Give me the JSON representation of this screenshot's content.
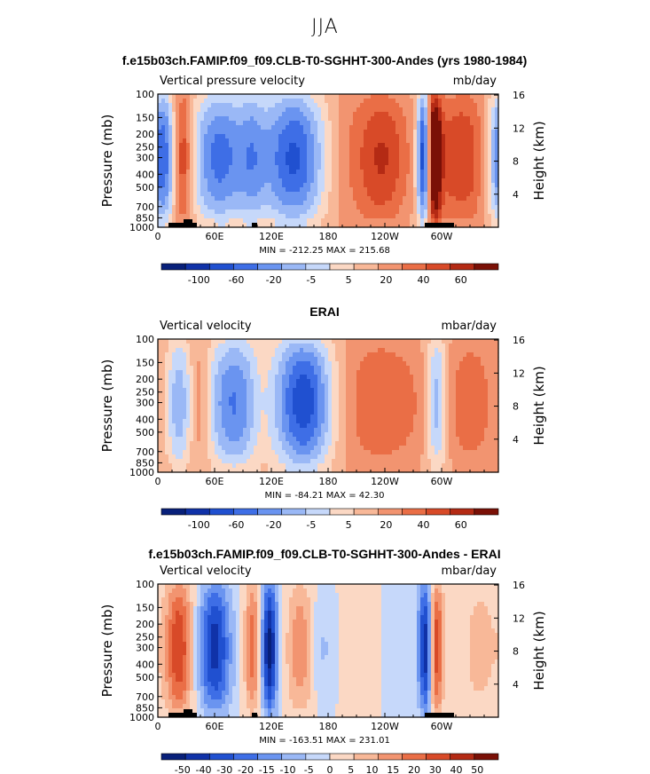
{
  "page_title": "JJA",
  "colors": {
    "palette": [
      "#08207a",
      "#1032a8",
      "#2050d0",
      "#3e6ee6",
      "#6a94f0",
      "#9ab8f6",
      "#c6d8fa",
      "#fbd8c4",
      "#f8b898",
      "#f29470",
      "#ea6e46",
      "#d84a28",
      "#b42a14",
      "#7a1006"
    ]
  },
  "chart_data": [
    {
      "type": "heatmap",
      "title": "f.e15b03ch.FAMIP.f09_f09.CLB-T0-SGHHT-300-Andes (yrs 1980-1984)",
      "left_label": "Vertical pressure velocity",
      "right_label": "mb/day",
      "ylabel": "Pressure (mb)",
      "ylabel_right": "Height (km)",
      "y_ticks": [
        "100",
        "150",
        "200",
        "250",
        "300",
        "400",
        "500",
        "700",
        "850",
        "1000"
      ],
      "y_right_ticks": [
        "16",
        "12",
        "8",
        "4"
      ],
      "x_ticks": [
        "0",
        "60E",
        "120E",
        "180",
        "120W",
        "60W"
      ],
      "stats": "MIN = -212.25   MAX = 215.68",
      "colorbar_labels": [
        "-100",
        "-60",
        "-20",
        "-5",
        "5",
        "20",
        "40",
        "60"
      ],
      "features": [
        {
          "lon": 5,
          "width": 12,
          "value": -70,
          "strength": 1
        },
        {
          "lon": 25,
          "width": 8,
          "value": 55,
          "strength": 1
        },
        {
          "lon": 65,
          "width": 22,
          "value": -60,
          "strength": 1
        },
        {
          "lon": 100,
          "width": 10,
          "value": -30,
          "strength": 0.8
        },
        {
          "lon": 145,
          "width": 25,
          "value": -70,
          "strength": 1
        },
        {
          "lon": 210,
          "width": 35,
          "value": 22,
          "strength": 0.7
        },
        {
          "lon": 240,
          "width": 18,
          "value": 35,
          "strength": 0.8
        },
        {
          "lon": 283,
          "width": 6,
          "value": -120,
          "strength": 1
        },
        {
          "lon": 290,
          "width": 6,
          "value": 110,
          "strength": 1
        },
        {
          "lon": 320,
          "width": 22,
          "value": 40,
          "strength": 0.9
        }
      ],
      "vmin": -100,
      "vmax": 60
    },
    {
      "type": "heatmap",
      "title": "ERAI",
      "left_label": "Vertical velocity",
      "right_label": "mbar/day",
      "ylabel": "Pressure (mb)",
      "ylabel_right": "Height (km)",
      "y_ticks": [
        "100",
        "150",
        "200",
        "250",
        "300",
        "400",
        "500",
        "700",
        "850",
        "1000"
      ],
      "y_right_ticks": [
        "16",
        "12",
        "8",
        "4"
      ],
      "x_ticks": [
        "0",
        "60E",
        "120E",
        "180",
        "120W",
        "60W"
      ],
      "stats": "MIN = -84.21   MAX = 42.30",
      "colorbar_labels": [
        "-100",
        "-60",
        "-20",
        "-5",
        "5",
        "20",
        "40",
        "60"
      ],
      "features": [
        {
          "lon": 22,
          "width": 10,
          "value": -40,
          "strength": 1
        },
        {
          "lon": 45,
          "width": 8,
          "value": 25,
          "strength": 0.8
        },
        {
          "lon": 80,
          "width": 22,
          "value": -55,
          "strength": 1
        },
        {
          "lon": 110,
          "width": 10,
          "value": 20,
          "strength": 0.6
        },
        {
          "lon": 155,
          "width": 22,
          "value": -75,
          "strength": 1
        },
        {
          "lon": 240,
          "width": 35,
          "value": 28,
          "strength": 0.9
        },
        {
          "lon": 295,
          "width": 8,
          "value": -45,
          "strength": 1
        },
        {
          "lon": 330,
          "width": 20,
          "value": 25,
          "strength": 0.8
        }
      ],
      "vmin": -100,
      "vmax": 60
    },
    {
      "type": "heatmap",
      "title": "f.e15b03ch.FAMIP.f09_f09.CLB-T0-SGHHT-300-Andes - ERAI",
      "left_label": "Vertical velocity",
      "right_label": "mbar/day",
      "ylabel": "Pressure (mb)",
      "ylabel_right": "Height (km)",
      "y_ticks": [
        "100",
        "150",
        "200",
        "250",
        "300",
        "400",
        "500",
        "700",
        "850",
        "1000"
      ],
      "y_right_ticks": [
        "16",
        "12",
        "8",
        "4"
      ],
      "x_ticks": [
        "0",
        "60E",
        "120E",
        "180",
        "120W",
        "60W"
      ],
      "stats": "MIN = -163.51   MAX = 231.01",
      "colorbar_labels": [
        "-50",
        "-40",
        "-30",
        "-20",
        "-15",
        "-10",
        "-5",
        "0",
        "5",
        "10",
        "15",
        "20",
        "30",
        "40",
        "50"
      ],
      "features": [
        {
          "lon": 22,
          "width": 10,
          "value": 35,
          "strength": 1
        },
        {
          "lon": 60,
          "width": 12,
          "value": -40,
          "strength": 1
        },
        {
          "lon": 100,
          "width": 6,
          "value": 30,
          "strength": 0.9
        },
        {
          "lon": 118,
          "width": 6,
          "value": -45,
          "strength": 1
        },
        {
          "lon": 150,
          "width": 10,
          "value": 25,
          "strength": 0.8
        },
        {
          "lon": 175,
          "width": 8,
          "value": -15,
          "strength": 0.6
        },
        {
          "lon": 285,
          "width": 6,
          "value": -60,
          "strength": 1
        },
        {
          "lon": 292,
          "width": 6,
          "value": 55,
          "strength": 1
        },
        {
          "lon": 340,
          "width": 15,
          "value": 15,
          "strength": 0.6
        }
      ],
      "vmin": -50,
      "vmax": 50
    }
  ]
}
